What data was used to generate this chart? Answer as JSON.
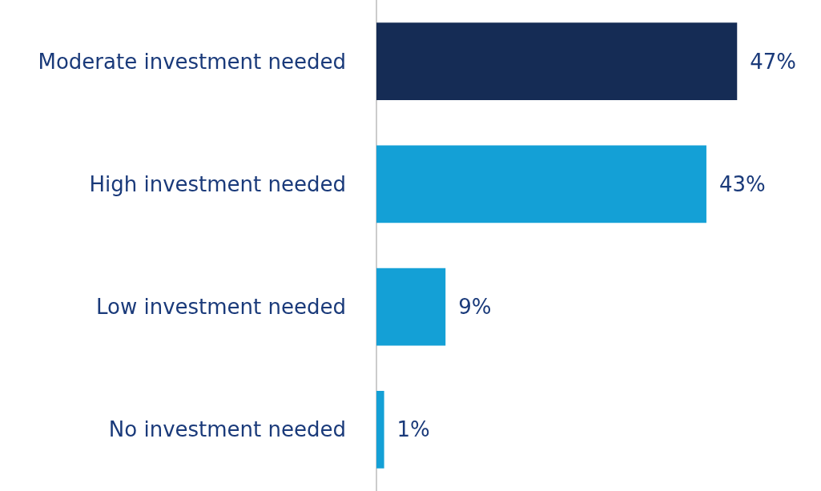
{
  "chart_data": {
    "type": "bar",
    "orientation": "horizontal",
    "categories": [
      "Moderate investment needed",
      "High investment needed",
      "Low investment needed",
      "No investment needed"
    ],
    "values": [
      47,
      43,
      9,
      1
    ],
    "colors": [
      "#152c55",
      "#14a0d6",
      "#14a0d6",
      "#14a0d6"
    ],
    "value_labels": [
      "47%",
      "43%",
      "9%",
      "1%"
    ],
    "tick_labels": "y",
    "grid": false
  }
}
